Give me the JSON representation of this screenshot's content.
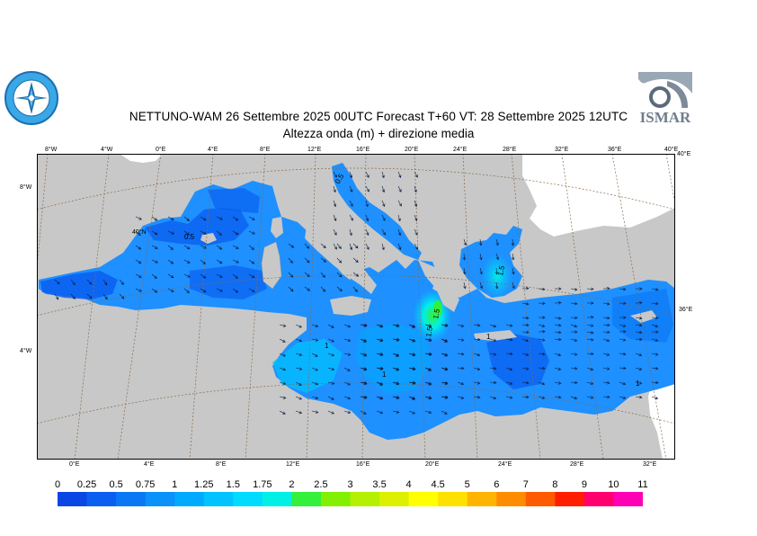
{
  "header": {
    "title_line1": "NETTUNO-WAM  26 Settembre 2025 00UTC Forecast T+60 VT: 28 Settembre 2025 12UTC",
    "title_line2": "Altezza onda (m) + direzione media"
  },
  "logos": {
    "left_name": "nettuno-emblem",
    "right_text": "ISMAR"
  },
  "map": {
    "top_lon_ticks": [
      "8°W",
      "4°W",
      "0°E",
      "4°E",
      "8°E",
      "12°E",
      "16°E",
      "20°E",
      "24°E",
      "28°E",
      "32°E",
      "36°E",
      "40°E"
    ],
    "bottom_lon_ticks": [
      "0°E",
      "4°E",
      "8°E",
      "12°E",
      "16°E",
      "20°E",
      "24°E",
      "28°E",
      "32°E"
    ],
    "left_lat_ticks": [
      "8°W",
      "4°W"
    ],
    "right_lat_ticks": [
      "40°E",
      "36°E"
    ],
    "inner_labels": [
      "40°N"
    ],
    "contour_labels": [
      "0.5",
      "0.5",
      "1",
      "1",
      "1",
      "1.5",
      "1.5",
      "1.5",
      "1"
    ],
    "colors": {
      "land": "#c8c8c8",
      "land_white": "#ffffff",
      "sea_base": "#1e90ff",
      "grid": "#8b6a4a"
    }
  },
  "legend": {
    "labels": [
      "0",
      "0.25",
      "0.5",
      "0.75",
      "1",
      "1.25",
      "1.5",
      "1.75",
      "2",
      "2.5",
      "3",
      "3.5",
      "4",
      "4.5",
      "5",
      "6",
      "7",
      "8",
      "9",
      "10",
      "11"
    ],
    "colors": [
      "#0a46e6",
      "#0a5ff0",
      "#0a78f5",
      "#0a91fa",
      "#00aaff",
      "#00c3ff",
      "#00dcff",
      "#00f0e6",
      "#32f03c",
      "#82f000",
      "#b4f000",
      "#dcf000",
      "#ffff00",
      "#ffe100",
      "#ffb400",
      "#ff8c00",
      "#ff5a00",
      "#ff1e00",
      "#ff006e",
      "#ff00b4"
    ]
  }
}
